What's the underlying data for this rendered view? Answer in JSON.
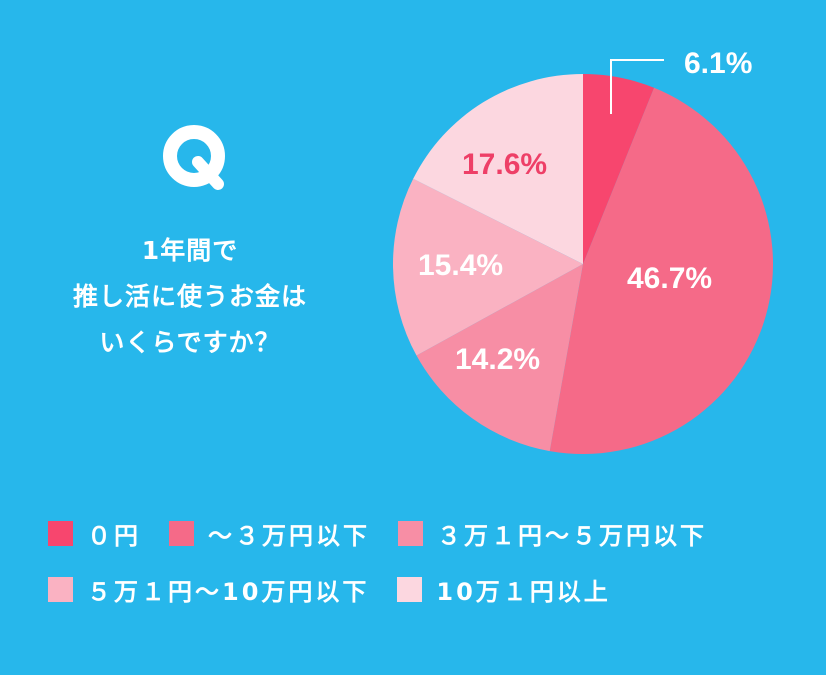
{
  "question": {
    "marker": "Q",
    "lines": [
      "1年間で",
      "推し活に使うお金は",
      "いくらですか？"
    ]
  },
  "colors": {
    "background": "#27B7EB",
    "slice_0": "#F7466E",
    "slice_1": "#F56A88",
    "slice_2": "#F78EA5",
    "slice_3": "#FAB2C2",
    "slice_4": "#FCD7E0",
    "dark_label": "#EE3F67"
  },
  "legend": [
    {
      "label": "０円",
      "color": "#F7466E"
    },
    {
      "label": "〜３万円以下",
      "color": "#F56A88"
    },
    {
      "label": "３万１円〜５万円以下",
      "color": "#F78EA5"
    },
    {
      "label": "５万１円〜10万円以下",
      "color": "#FAB2C2"
    },
    {
      "label": "10万１円以上",
      "color": "#FCD7E0"
    }
  ],
  "slice_labels": [
    "6.1%",
    "46.7%",
    "14.2%",
    "15.4%",
    "17.6%"
  ],
  "chart_data": {
    "type": "pie",
    "title": "1年間で推し活に使うお金はいくらですか？",
    "categories": [
      "0円",
      "〜3万円以下",
      "3万1円〜5万円以下",
      "5万1円〜10万円以下",
      "10万1円以上"
    ],
    "values": [
      6.1,
      46.7,
      14.2,
      15.4,
      17.6
    ],
    "unit": "%",
    "start_angle": "12 o'clock",
    "direction": "clockwise",
    "legend_position": "bottom",
    "annotations": [
      {
        "text": "6.1%",
        "leader_line": true
      }
    ]
  }
}
